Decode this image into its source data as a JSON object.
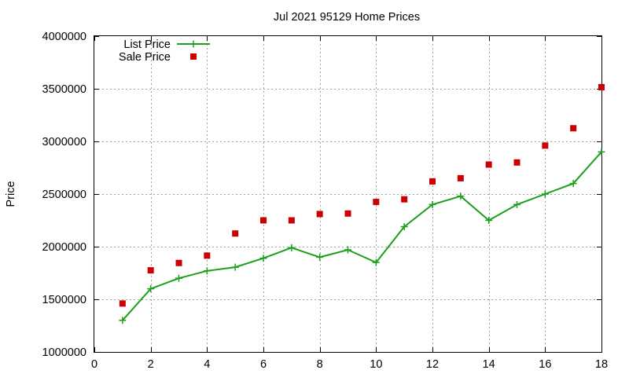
{
  "chart_data": {
    "type": "line",
    "title": "Jul 2021 95129 Home Prices",
    "xlabel": "",
    "ylabel": "Price",
    "xlim": [
      0,
      18
    ],
    "ylim": [
      1000000,
      4000000
    ],
    "x_ticks": [
      0,
      2,
      4,
      6,
      8,
      10,
      12,
      14,
      16,
      18
    ],
    "y_ticks": [
      1000000,
      1500000,
      2000000,
      2500000,
      3000000,
      3500000,
      4000000
    ],
    "grid": true,
    "legend_position": "top-left",
    "x": [
      1,
      2,
      3,
      4,
      5,
      6,
      7,
      8,
      9,
      10,
      11,
      12,
      13,
      14,
      15,
      16,
      17,
      18
    ],
    "series": [
      {
        "name": "List Price",
        "style": "line-with-plus-markers",
        "color": "#1aa01a",
        "values": [
          1300000,
          1600000,
          1700000,
          1770000,
          1805000,
          1890000,
          1990000,
          1900000,
          1970000,
          1850000,
          2190000,
          2400000,
          2480000,
          2250000,
          2400000,
          2500000,
          2600000,
          2900000
        ]
      },
      {
        "name": "Sale Price",
        "style": "square-markers",
        "color": "#cc0000",
        "values": [
          1460000,
          1775000,
          1845000,
          1915000,
          2125000,
          2250000,
          2250000,
          2310000,
          2315000,
          2425000,
          2450000,
          2620000,
          2650000,
          2780000,
          2800000,
          2960000,
          3125000,
          3515000
        ]
      }
    ]
  }
}
